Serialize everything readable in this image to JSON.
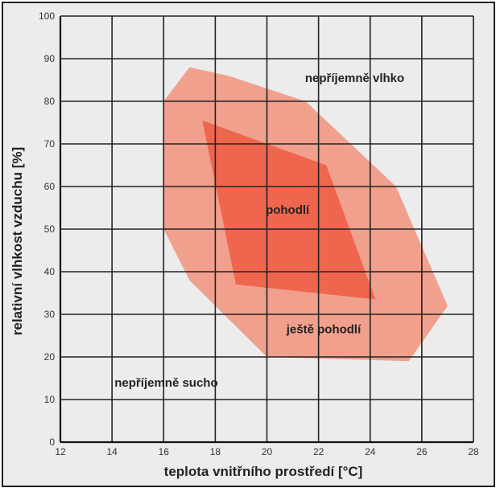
{
  "chart_data": {
    "type": "area",
    "title": "",
    "xlabel": "teplota vnitřního prostředí [°C]",
    "ylabel": "relativní vlhkost vzduchu [%]",
    "xlim": [
      12,
      28
    ],
    "ylim": [
      0,
      100
    ],
    "x_ticks": [
      "12",
      "14",
      "16",
      "18",
      "20",
      "22",
      "24",
      "26",
      "28"
    ],
    "y_ticks": [
      "0",
      "10",
      "20",
      "30",
      "40",
      "50",
      "60",
      "70",
      "80",
      "90",
      "100"
    ],
    "grid": true,
    "regions": [
      {
        "name": "ještě pohodlí",
        "color": "#f0a08c",
        "points": [
          [
            17,
            88
          ],
          [
            18.5,
            86
          ],
          [
            21.5,
            80
          ],
          [
            25,
            60
          ],
          [
            27,
            32
          ],
          [
            25.5,
            19
          ],
          [
            20,
            20
          ],
          [
            17,
            38
          ],
          [
            16,
            50
          ],
          [
            16,
            80
          ]
        ]
      },
      {
        "name": "pohodlí",
        "color": "#f0654e",
        "points": [
          [
            17.5,
            75.5
          ],
          [
            22.3,
            65
          ],
          [
            24.2,
            33.5
          ],
          [
            18.8,
            37
          ]
        ]
      }
    ],
    "labels": [
      {
        "text": "nepříjemně vlhko",
        "x": 23.4,
        "y": 85.5
      },
      {
        "text": "pohodlí",
        "x": 20.8,
        "y": 54.5
      },
      {
        "text": "ještě pohodlí",
        "x": 22.2,
        "y": 26.5
      },
      {
        "text": "nepříjemně sucho",
        "x": 16.1,
        "y": 14
      }
    ]
  }
}
